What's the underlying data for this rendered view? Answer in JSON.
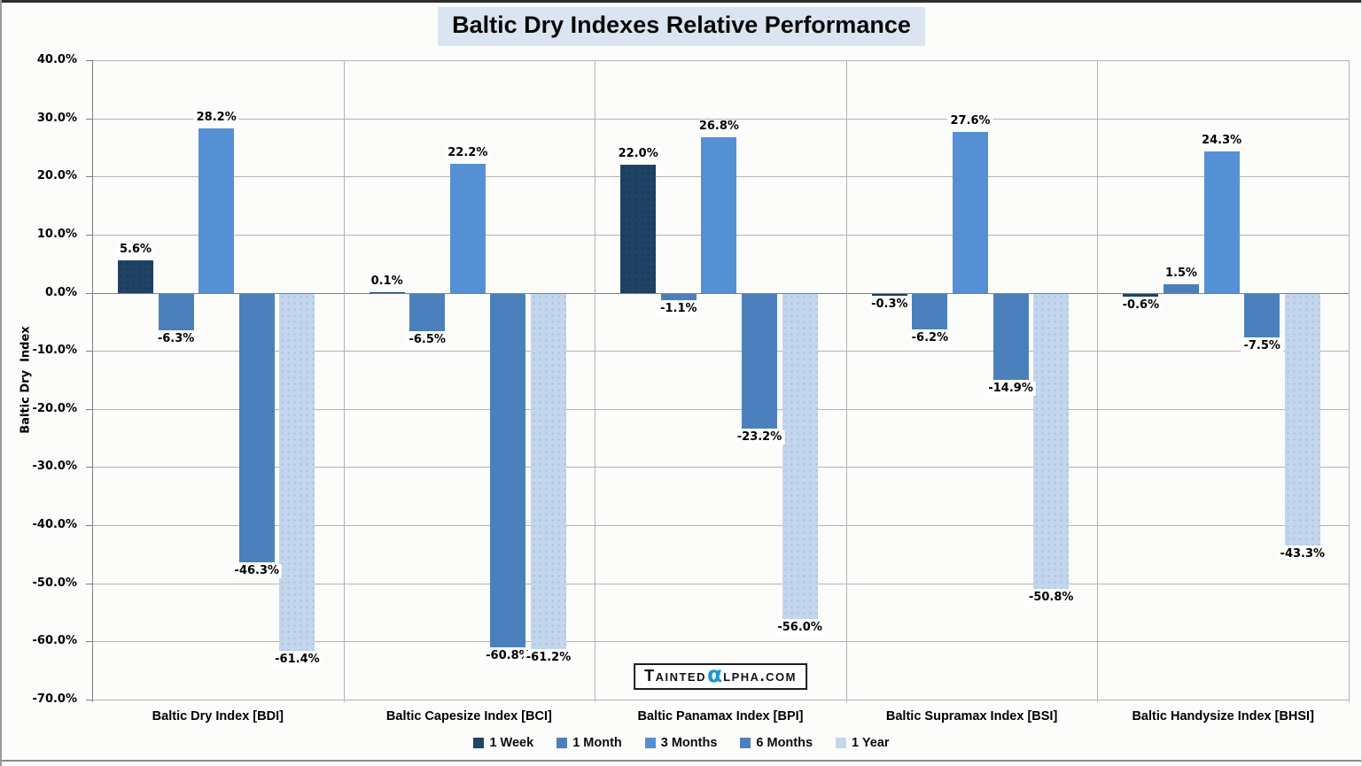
{
  "title": "Baltic Dry Indexes Relative Performance",
  "watermark": {
    "prefix": "Tainted",
    "alpha": "α",
    "suffix": "lpha.com"
  },
  "chart_data": {
    "type": "bar",
    "title": "Baltic Dry Indexes Relative Performance",
    "xlabel": "",
    "ylabel": "Baltic Dry  Index",
    "ylim": [
      -70,
      40
    ],
    "ytick_step": 10,
    "ytick_labels": [
      "40.0%",
      "30.0%",
      "20.0%",
      "10.0%",
      "0.0%",
      "-10.0%",
      "-20.0%",
      "-30.0%",
      "-40.0%",
      "-50.0%",
      "-60.0%",
      "-70.0%"
    ],
    "value_label_format": "one_decimal_percent",
    "grid": true,
    "legend_position": "bottom",
    "categories": [
      "Baltic Dry Index [BDI]",
      "Baltic Capesize Index [BCI]",
      "Baltic Panamax Index [BPI]",
      "Baltic Supramax Index [BSI]",
      "Baltic Handysize Index [BHSI]"
    ],
    "series": [
      {
        "name": "1 Week",
        "color": "#1F4265",
        "dot_color": "#193757",
        "values": [
          5.6,
          0.1,
          22.0,
          -0.3,
          -0.6
        ]
      },
      {
        "name": "1 Month",
        "color": "#4C80BC",
        "dot_color": null,
        "values": [
          -6.3,
          -6.5,
          -1.1,
          -6.2,
          1.5
        ]
      },
      {
        "name": "3 Months",
        "color": "#5590D5",
        "dot_color": null,
        "values": [
          28.2,
          22.2,
          26.8,
          27.6,
          24.3
        ]
      },
      {
        "name": "6 Months",
        "color": "#4C80BC",
        "dot_color": null,
        "values": [
          -46.3,
          -60.8,
          -23.2,
          -14.9,
          -7.5
        ]
      },
      {
        "name": "1 Year",
        "color": "#C3D6ED",
        "dot_color": "#A6C2E1",
        "values": [
          -61.4,
          -61.2,
          -56.0,
          -50.8,
          -43.3
        ]
      }
    ],
    "colors": {
      "plot_background": "#FCFDFA",
      "gridline": "#B3B3B3",
      "axis": "#7F7F7F",
      "title_background": "#DBE5F1",
      "watermark_alpha": "#1E96D2"
    }
  }
}
